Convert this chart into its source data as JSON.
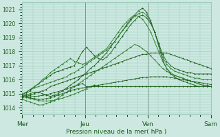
{
  "title": "",
  "xlabel": "Pression niveau de la mer( hPa )",
  "ylabel": "",
  "bg_color": "#cce8e0",
  "grid_color": "#99ccbb",
  "line_color_dark": "#1a5c1a",
  "line_color_mid": "#2d7a2d",
  "ylim": [
    1013.5,
    1021.5
  ],
  "yticks": [
    1014,
    1015,
    1016,
    1017,
    1018,
    1019,
    1020,
    1021
  ],
  "xtick_labels": [
    "Mer",
    "Jeu",
    "Ven",
    "Sam"
  ],
  "xtick_positions": [
    0,
    48,
    96,
    144
  ],
  "total_hours": 144,
  "lines": [
    [
      1014.8,
      1014.9,
      1015.0,
      1015.1,
      1015.1,
      1015.0,
      1014.9,
      1014.8,
      1014.9,
      1015.0,
      1015.2,
      1015.4,
      1015.6,
      1015.8,
      1016.0,
      1016.3,
      1016.5,
      1016.8,
      1017.0,
      1017.3,
      1017.6,
      1017.9,
      1018.3,
      1018.7,
      1019.1,
      1019.5,
      1019.9,
      1020.3,
      1020.6,
      1020.9,
      1021.1,
      1020.8,
      1020.2,
      1019.4,
      1018.4,
      1017.4,
      1016.8,
      1016.4,
      1016.2,
      1016.0,
      1015.9,
      1015.8,
      1015.7,
      1015.6,
      1015.5,
      1015.5,
      1015.5,
      1015.5
    ],
    [
      1015.0,
      1015.1,
      1015.3,
      1015.4,
      1015.5,
      1015.6,
      1015.7,
      1015.8,
      1015.9,
      1016.0,
      1016.1,
      1016.2,
      1016.4,
      1016.5,
      1016.7,
      1016.9,
      1017.1,
      1017.3,
      1017.5,
      1017.7,
      1017.9,
      1018.1,
      1018.4,
      1018.7,
      1019.1,
      1019.5,
      1019.8,
      1020.2,
      1020.5,
      1020.7,
      1020.8,
      1020.6,
      1020.1,
      1019.4,
      1018.5,
      1017.6,
      1017.1,
      1016.8,
      1016.6,
      1016.5,
      1016.4,
      1016.3,
      1016.2,
      1016.1,
      1016.1,
      1016.0,
      1016.0,
      1016.0
    ],
    [
      1014.9,
      1015.1,
      1015.3,
      1015.5,
      1015.7,
      1015.9,
      1016.1,
      1016.3,
      1016.5,
      1016.6,
      1016.7,
      1016.8,
      1016.9,
      1017.0,
      1017.5,
      1018.0,
      1018.3,
      1018.0,
      1017.7,
      1017.5,
      1017.4,
      1017.6,
      1017.9,
      1018.3,
      1018.7,
      1019.1,
      1019.5,
      1019.9,
      1020.2,
      1020.5,
      1020.6,
      1020.4,
      1020.0,
      1019.4,
      1018.6,
      1017.8,
      1017.3,
      1017.0,
      1016.8,
      1016.7,
      1016.6,
      1016.5,
      1016.5,
      1016.4,
      1016.4,
      1016.4,
      1016.4,
      1016.4
    ],
    [
      1014.8,
      1015.0,
      1015.2,
      1015.5,
      1015.7,
      1016.0,
      1016.2,
      1016.5,
      1016.7,
      1016.9,
      1017.1,
      1017.3,
      1017.5,
      1017.3,
      1017.2,
      1017.1,
      1017.2,
      1017.4,
      1017.6,
      1017.8,
      1018.0,
      1018.2,
      1018.6,
      1019.0,
      1019.4,
      1019.8,
      1020.1,
      1020.4,
      1020.6,
      1020.5,
      1020.3,
      1019.9,
      1019.4,
      1018.7,
      1018.0,
      1017.3,
      1016.8,
      1016.5,
      1016.3,
      1016.2,
      1016.1,
      1016.0,
      1015.9,
      1015.8,
      1015.7,
      1015.6,
      1015.6,
      1015.5
    ],
    [
      1014.7,
      1014.8,
      1014.9,
      1015.0,
      1015.1,
      1015.2,
      1015.3,
      1015.5,
      1015.6,
      1015.7,
      1015.8,
      1015.9,
      1016.0,
      1016.1,
      1016.2,
      1016.3,
      1016.4,
      1016.5,
      1016.6,
      1016.7,
      1016.8,
      1016.9,
      1017.0,
      1017.1,
      1017.2,
      1017.3,
      1017.4,
      1017.5,
      1017.6,
      1017.7,
      1017.8,
      1017.8,
      1017.9,
      1017.9,
      1017.9,
      1017.9,
      1017.9,
      1017.8,
      1017.7,
      1017.6,
      1017.5,
      1017.4,
      1017.3,
      1017.2,
      1017.1,
      1017.0,
      1016.9,
      1016.8
    ],
    [
      1014.6,
      1014.5,
      1014.4,
      1014.3,
      1014.2,
      1014.2,
      1014.3,
      1014.4,
      1014.5,
      1014.7,
      1014.9,
      1015.1,
      1015.3,
      1015.5,
      1015.7,
      1015.9,
      1016.1,
      1016.3,
      1016.5,
      1016.7,
      1016.9,
      1017.1,
      1017.3,
      1017.5,
      1017.7,
      1017.9,
      1018.1,
      1018.3,
      1018.5,
      1018.4,
      1018.2,
      1018.0,
      1017.7,
      1017.4,
      1017.1,
      1016.8,
      1016.6,
      1016.4,
      1016.3,
      1016.2,
      1016.1,
      1016.0,
      1015.9,
      1015.8,
      1015.7,
      1015.6,
      1015.6,
      1015.5
    ],
    [
      1014.8,
      1014.75,
      1014.7,
      1014.65,
      1014.6,
      1014.6,
      1014.65,
      1014.7,
      1014.8,
      1014.9,
      1015.0,
      1015.1,
      1015.2,
      1015.3,
      1015.35,
      1015.4,
      1015.45,
      1015.5,
      1015.55,
      1015.6,
      1015.65,
      1015.7,
      1015.75,
      1015.8,
      1015.85,
      1015.9,
      1015.95,
      1016.0,
      1016.05,
      1016.1,
      1016.15,
      1016.15,
      1016.2,
      1016.2,
      1016.2,
      1016.2,
      1016.2,
      1016.15,
      1016.1,
      1016.05,
      1016.0,
      1015.95,
      1015.9,
      1015.85,
      1015.8,
      1015.75,
      1015.7,
      1015.65
    ],
    [
      1014.8,
      1014.72,
      1014.65,
      1014.58,
      1014.52,
      1014.48,
      1014.48,
      1014.5,
      1014.54,
      1014.6,
      1014.68,
      1014.77,
      1014.87,
      1014.98,
      1015.1,
      1015.22,
      1015.35,
      1015.48,
      1015.62,
      1015.5,
      1015.5,
      1015.5,
      1015.5,
      1015.5,
      1015.5,
      1015.5,
      1015.5,
      1015.5,
      1015.5,
      1015.5,
      1015.5,
      1015.5,
      1015.5,
      1015.5,
      1015.5,
      1015.5,
      1015.5,
      1015.5,
      1015.5,
      1015.5,
      1015.5,
      1015.5,
      1015.5,
      1015.5,
      1015.5,
      1015.5,
      1015.5,
      1015.5
    ],
    [
      1014.8,
      1014.78,
      1014.78,
      1014.8,
      1014.83,
      1014.87,
      1014.93,
      1015.0,
      1015.07,
      1015.15,
      1015.24,
      1015.33,
      1015.43,
      1015.53,
      1015.63,
      1015.73,
      1015.5,
      1015.5,
      1015.5,
      1015.5,
      1015.5,
      1015.5,
      1015.5,
      1015.5,
      1015.5,
      1015.5,
      1015.5,
      1015.5,
      1015.5,
      1015.5,
      1015.5,
      1015.5,
      1015.5,
      1015.5,
      1015.5,
      1015.5,
      1015.5,
      1015.5,
      1015.5,
      1015.5,
      1015.5,
      1015.5,
      1015.5,
      1015.5,
      1015.5,
      1015.5,
      1015.5,
      1015.5
    ]
  ]
}
